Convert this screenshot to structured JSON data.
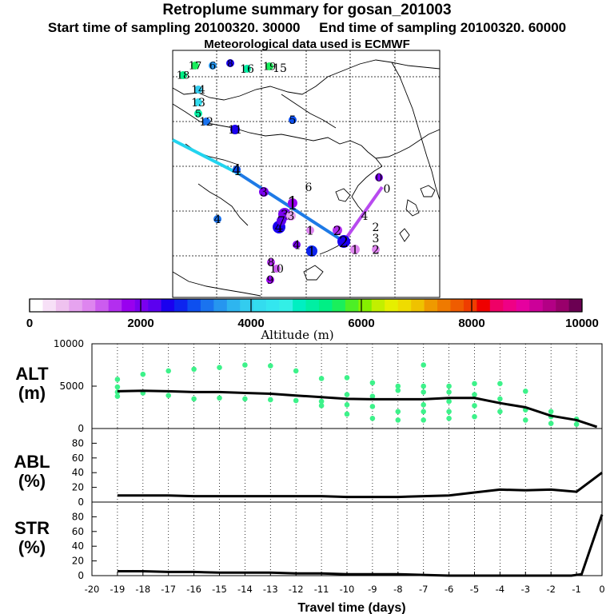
{
  "header": {
    "title": "Retroplume summary for gosan_201003",
    "start_label": "Start time of sampling 20100320. 30000",
    "end_label": "End time of sampling 20100320. 60000",
    "met_label": "Meteorological data used is ECMWF"
  },
  "colorbar": {
    "ticks": [
      "0",
      "2000",
      "4000",
      "6000",
      "8000",
      "10000"
    ],
    "label": "Altitude (m)",
    "colors": [
      "#ffffff",
      "#f7e0f7",
      "#efc2ef",
      "#e6a3ef",
      "#de85ef",
      "#cc5cef",
      "#b32eef",
      "#9900ef",
      "#7a00ef",
      "#5c00ef",
      "#1a00ef",
      "#0d24ef",
      "#0d4fef",
      "#1a73ef",
      "#2696ef",
      "#2eb5ef",
      "#33ccef",
      "#33dcef",
      "#33e6ef",
      "#33efe6",
      "#00efc2",
      "#00efa3",
      "#00ef85",
      "#1aef5c",
      "#4def26",
      "#85ef00",
      "#c2ef00",
      "#e6ef00",
      "#efdc00",
      "#efc200",
      "#ef9900",
      "#ef7a00",
      "#ef5c00",
      "#ef3d00",
      "#ef0000",
      "#ef0066",
      "#ef0085",
      "#e6009f",
      "#cc0099",
      "#b30085",
      "#99006b",
      "#6b0052"
    ]
  },
  "map": {
    "numbers": [
      {
        "t": "17"
      },
      {
        "t": "6"
      },
      {
        "t": "8"
      },
      {
        "t": "16"
      },
      {
        "t": "19"
      },
      {
        "t": "15"
      },
      {
        "t": "18"
      },
      {
        "t": "14"
      },
      {
        "t": "13"
      },
      {
        "t": "5"
      },
      {
        "t": "12"
      },
      {
        "t": "11"
      },
      {
        "t": "5"
      },
      {
        "t": "4"
      },
      {
        "t": "3"
      },
      {
        "t": "6"
      },
      {
        "t": "1"
      },
      {
        "t": "3"
      },
      {
        "t": "4"
      },
      {
        "t": "4"
      },
      {
        "t": "0"
      },
      {
        "t": "0"
      },
      {
        "t": "4"
      },
      {
        "t": "2"
      },
      {
        "t": "3"
      },
      {
        "t": "1"
      },
      {
        "t": "2"
      },
      {
        "t": "2"
      },
      {
        "t": "1"
      },
      {
        "t": "4"
      },
      {
        "t": "2"
      },
      {
        "t": "1"
      },
      {
        "t": "8"
      },
      {
        "t": "10"
      },
      {
        "t": "9"
      },
      {
        "t": "7"
      },
      {
        "t": "3"
      }
    ]
  },
  "chart_data": [
    {
      "type": "scatter",
      "id": "ALT",
      "ylabel": "ALT",
      "yunit": "(m)",
      "ylim": [
        0,
        10000
      ],
      "yticks": [
        "10000",
        "5000",
        "0"
      ],
      "xlim": [
        -20,
        0
      ],
      "line_x": [
        -19,
        -18,
        -17,
        -16,
        -15,
        -14,
        -13,
        -12,
        -11,
        -10,
        -9,
        -8,
        -7,
        -6,
        -5,
        -4,
        -3,
        -2,
        -1,
        -0.2
      ],
      "line_y": [
        4400,
        4450,
        4400,
        4300,
        4300,
        4200,
        4100,
        3900,
        3700,
        3500,
        3450,
        3450,
        3450,
        3600,
        3600,
        3000,
        2500,
        1500,
        1000,
        200
      ],
      "points": [
        [
          -19,
          5800
        ],
        [
          -19,
          4900
        ],
        [
          -19,
          4300
        ],
        [
          -19,
          3800
        ],
        [
          -18,
          6400
        ],
        [
          -18,
          4200
        ],
        [
          -17,
          6800
        ],
        [
          -17,
          3900
        ],
        [
          -16,
          7000
        ],
        [
          -16,
          3500
        ],
        [
          -15,
          7200
        ],
        [
          -15,
          3600
        ],
        [
          -14,
          7500
        ],
        [
          -14,
          3500
        ],
        [
          -13,
          7400
        ],
        [
          -13,
          3400
        ],
        [
          -12,
          6800
        ],
        [
          -12,
          3300
        ],
        [
          -11,
          5900
        ],
        [
          -11,
          3200
        ],
        [
          -11,
          2700
        ],
        [
          -10,
          6000
        ],
        [
          -10,
          4000
        ],
        [
          -10,
          2800
        ],
        [
          -10,
          1700
        ],
        [
          -9,
          5400
        ],
        [
          -9,
          3800
        ],
        [
          -9,
          2600
        ],
        [
          -9,
          1200
        ],
        [
          -8,
          5000
        ],
        [
          -8,
          4500
        ],
        [
          -8,
          2000
        ],
        [
          -8,
          1000
        ],
        [
          -7,
          7500
        ],
        [
          -7,
          5000
        ],
        [
          -7,
          4300
        ],
        [
          -7,
          2800
        ],
        [
          -7,
          2000
        ],
        [
          -7,
          1000
        ],
        [
          -6,
          5000
        ],
        [
          -6,
          4300
        ],
        [
          -6,
          3200
        ],
        [
          -6,
          2000
        ],
        [
          -6,
          1200
        ],
        [
          -5,
          5300
        ],
        [
          -5,
          4000
        ],
        [
          -5,
          2700
        ],
        [
          -5,
          1400
        ],
        [
          -4,
          5300
        ],
        [
          -4,
          3500
        ],
        [
          -4,
          2000
        ],
        [
          -3,
          4400
        ],
        [
          -3,
          2200
        ],
        [
          -3,
          1000
        ],
        [
          -2,
          2000
        ],
        [
          -2,
          1400
        ],
        [
          -2,
          600
        ],
        [
          -1,
          1100
        ],
        [
          -1,
          500
        ]
      ]
    },
    {
      "type": "line",
      "id": "ABL",
      "ylabel": "ABL",
      "yunit": "(%)",
      "ylim": [
        0,
        100
      ],
      "yticks": [
        "80",
        "60",
        "40",
        "20",
        "0"
      ],
      "xlim": [
        -20,
        0
      ],
      "x": [
        -19,
        -18,
        -17,
        -16,
        -15,
        -14,
        -13,
        -12,
        -11,
        -10,
        -9,
        -8,
        -7,
        -6,
        -5,
        -4,
        -3,
        -2,
        -1,
        0
      ],
      "y": [
        9,
        9,
        9,
        8,
        8,
        8,
        8,
        8,
        8,
        7,
        7,
        7,
        8,
        9,
        13,
        17,
        16,
        17,
        14,
        40
      ]
    },
    {
      "type": "line",
      "id": "STR",
      "ylabel": "STR",
      "yunit": "(%)",
      "ylim": [
        0,
        100
      ],
      "yticks": [
        "80",
        "60",
        "40",
        "20",
        "0"
      ],
      "xlim": [
        -20,
        0
      ],
      "x": [
        -19,
        -18,
        -17,
        -16,
        -15,
        -14,
        -13,
        -12,
        -11,
        -10,
        -9,
        -8,
        -7,
        -6,
        -5,
        -4,
        -3,
        -2,
        -1.2,
        -0.8,
        0
      ],
      "y": [
        6,
        6,
        5,
        5,
        4,
        4,
        4,
        3,
        3,
        2,
        2,
        2,
        1,
        0,
        0,
        0,
        0,
        0,
        0,
        2,
        83
      ],
      "xlabel": "Travel time (days)",
      "xticks": [
        "-20",
        "-19",
        "-18",
        "-17",
        "-16",
        "-15",
        "-14",
        "-13",
        "-12",
        "-11",
        "-10",
        "-9",
        "-8",
        "-7",
        "-6",
        "-5",
        "-4",
        "-3",
        "-2",
        "-1",
        "0"
      ]
    }
  ]
}
